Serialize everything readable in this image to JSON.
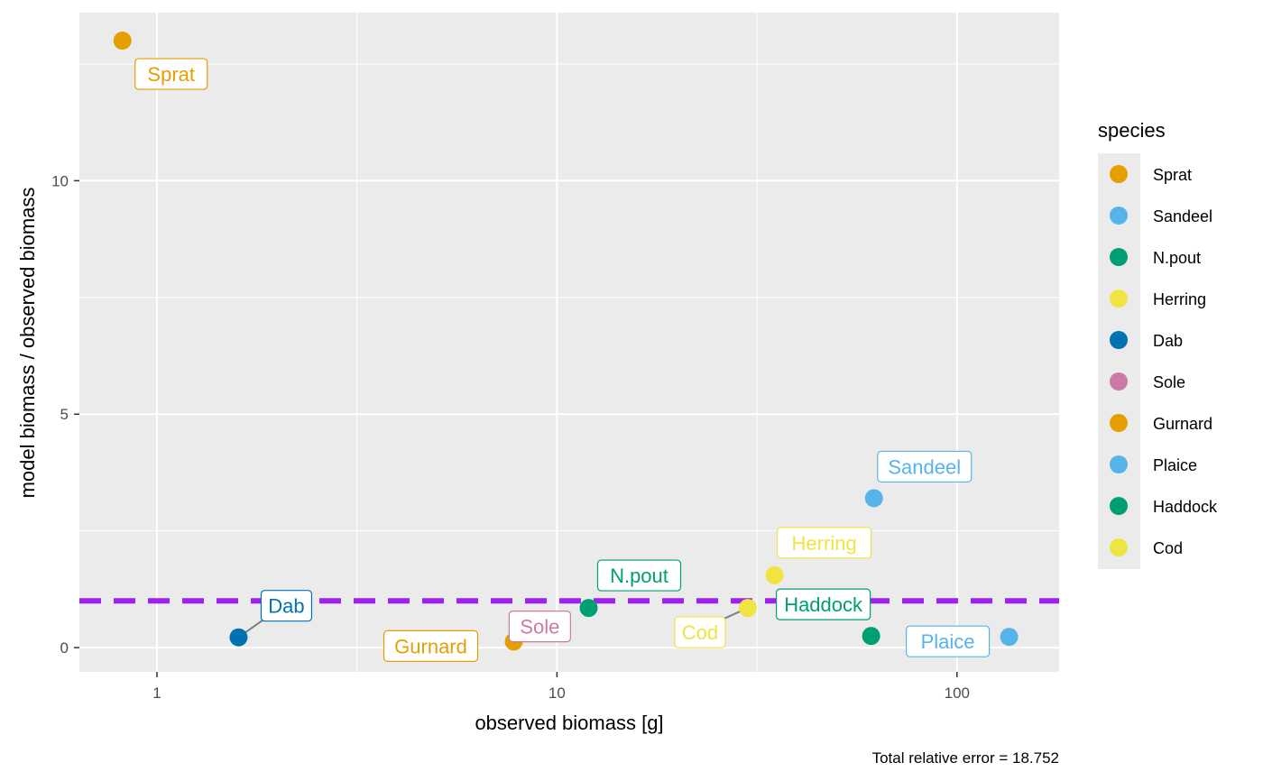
{
  "chart_data": {
    "type": "scatter",
    "xlabel": "observed biomass [g]",
    "ylabel": "model biomass / observed biomass",
    "x_scale": "log10",
    "xlim": [
      0.64,
      180
    ],
    "ylim": [
      -0.52,
      13.6
    ],
    "x_ticks": [
      {
        "value": 1,
        "label": "1"
      },
      {
        "value": 10,
        "label": "10"
      },
      {
        "value": 100,
        "label": "100"
      }
    ],
    "y_ticks": [
      {
        "value": 0,
        "label": "0"
      },
      {
        "value": 5,
        "label": "5"
      },
      {
        "value": 10,
        "label": "10"
      }
    ],
    "reference_line": {
      "y": 1,
      "color": "#a020f0",
      "style": "dashed"
    },
    "grid": true,
    "legend": {
      "title": "species",
      "position": "right"
    },
    "caption": "Total relative error = 18.752",
    "points": [
      {
        "species": "Sprat",
        "x": 0.82,
        "y": 13.0,
        "color": "#e69f00",
        "label": "Sprat"
      },
      {
        "species": "Sandeel",
        "x": 62,
        "y": 3.2,
        "color": "#56b4e9",
        "label": "Sandeel"
      },
      {
        "species": "N.pout",
        "x": 12,
        "y": 0.85,
        "color": "#009e73",
        "label": "N.pout"
      },
      {
        "species": "Herring",
        "x": 35,
        "y": 1.55,
        "color": "#f0e442",
        "label": "Herring"
      },
      {
        "species": "Dab",
        "x": 1.6,
        "y": 0.22,
        "color": "#0072b2",
        "label": "Dab"
      },
      {
        "species": "Sole",
        "x": 10,
        "y": 0.55,
        "color": "#cc79a7",
        "label": "Sole"
      },
      {
        "species": "Gurnard",
        "x": 7.8,
        "y": 0.13,
        "color": "#e69f00",
        "label": "Gurnard"
      },
      {
        "species": "Plaice",
        "x": 135,
        "y": 0.23,
        "color": "#56b4e9",
        "label": "Plaice"
      },
      {
        "species": "Haddock",
        "x": 61,
        "y": 0.25,
        "color": "#009e73",
        "label": "Haddock"
      },
      {
        "species": "Cod",
        "x": 30,
        "y": 0.85,
        "color": "#f0e442",
        "label": "Cod"
      }
    ],
    "legend_entries": [
      {
        "name": "Sprat",
        "color": "#e69f00"
      },
      {
        "name": "Sandeel",
        "color": "#56b4e9"
      },
      {
        "name": "N.pout",
        "color": "#009e73"
      },
      {
        "name": "Herring",
        "color": "#f0e442"
      },
      {
        "name": "Dab",
        "color": "#0072b2"
      },
      {
        "name": "Sole",
        "color": "#cc79a7"
      },
      {
        "name": "Gurnard",
        "color": "#e69f00"
      },
      {
        "name": "Plaice",
        "color": "#56b4e9"
      },
      {
        "name": "Haddock",
        "color": "#009e73"
      },
      {
        "name": "Cod",
        "color": "#f0e442"
      }
    ]
  }
}
